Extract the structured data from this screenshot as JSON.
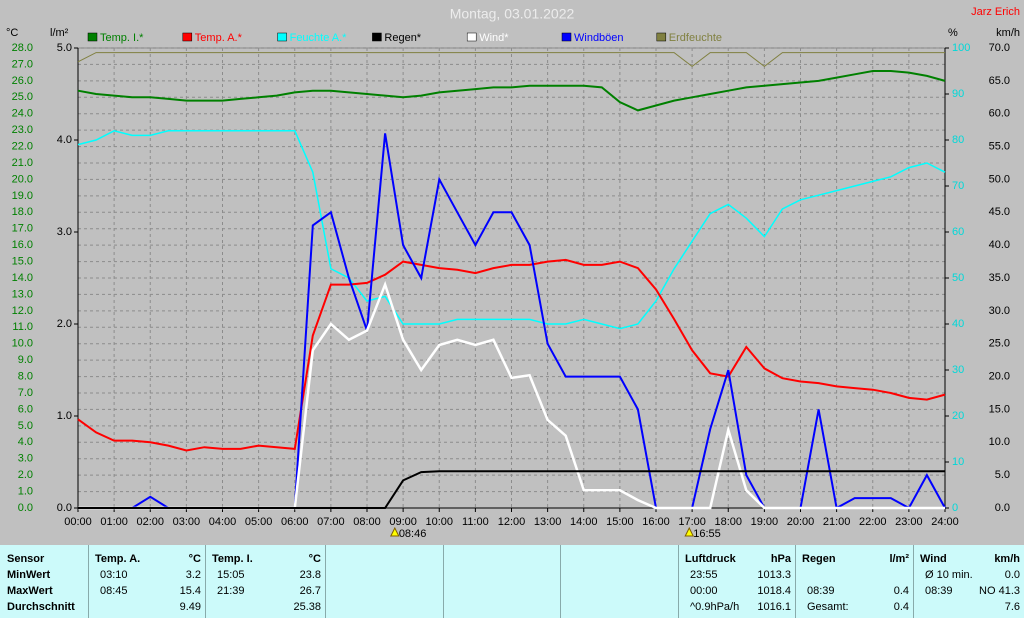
{
  "chart_data": {
    "type": "line",
    "title": "Montag, 03.01.2022",
    "author": "Jarz Erich",
    "y_label": "°C",
    "y2_label": "l/m²",
    "y3_label": "%",
    "y4_label": "km/h",
    "x": [
      0,
      0.5,
      1,
      1.5,
      2,
      2.5,
      3,
      3.5,
      4,
      4.5,
      5,
      5.5,
      6,
      6.5,
      7,
      7.5,
      8,
      8.5,
      9,
      9.5,
      10,
      10.5,
      11,
      11.5,
      12,
      12.5,
      13,
      13.5,
      14,
      14.5,
      15,
      15.5,
      16,
      16.5,
      17,
      17.5,
      18,
      18.5,
      19,
      19.5,
      20,
      20.5,
      21,
      21.5,
      22,
      22.5,
      23,
      23.5,
      24
    ],
    "xlim": [
      0,
      24
    ],
    "xticks": [
      {
        "value": 0,
        "label": "00:00"
      },
      {
        "value": 1,
        "label": "01:00"
      },
      {
        "value": 2,
        "label": "02:00"
      },
      {
        "value": 3,
        "label": "03:00"
      },
      {
        "value": 4,
        "label": "04:00"
      },
      {
        "value": 5,
        "label": "05:00"
      },
      {
        "value": 6,
        "label": "06:00"
      },
      {
        "value": 7,
        "label": "07:00"
      },
      {
        "value": 8,
        "label": "08:00"
      },
      {
        "value": 9,
        "label": "09:00"
      },
      {
        "value": 10,
        "label": "10:00"
      },
      {
        "value": 11,
        "label": "11:00"
      },
      {
        "value": 12,
        "label": "12:00"
      },
      {
        "value": 13,
        "label": "13:00"
      },
      {
        "value": 14,
        "label": "14:00"
      },
      {
        "value": 15,
        "label": "15:00"
      },
      {
        "value": 16,
        "label": "16:00"
      },
      {
        "value": 17,
        "label": "17:00"
      },
      {
        "value": 18,
        "label": "18:00"
      },
      {
        "value": 19,
        "label": "19:00"
      },
      {
        "value": 20,
        "label": "20:00"
      },
      {
        "value": 21,
        "label": "21:00"
      },
      {
        "value": 22,
        "label": "22:00"
      },
      {
        "value": 23,
        "label": "23:00"
      },
      {
        "value": 24,
        "label": "24:00"
      }
    ],
    "ylim": [
      0,
      28
    ],
    "yticks": [
      {
        "value": 0,
        "label": "0.0"
      },
      {
        "value": 1,
        "label": "1.0"
      },
      {
        "value": 2,
        "label": "2.0"
      },
      {
        "value": 3,
        "label": "3.0"
      },
      {
        "value": 4,
        "label": "4.0"
      },
      {
        "value": 5,
        "label": "5.0"
      },
      {
        "value": 6,
        "label": "6.0"
      },
      {
        "value": 7,
        "label": "7.0"
      },
      {
        "value": 8,
        "label": "8.0"
      },
      {
        "value": 9,
        "label": "9.0"
      },
      {
        "value": 10,
        "label": "10.0"
      },
      {
        "value": 11,
        "label": "11.0"
      },
      {
        "value": 12,
        "label": "12.0"
      },
      {
        "value": 13,
        "label": "13.0"
      },
      {
        "value": 14,
        "label": "14.0"
      },
      {
        "value": 15,
        "label": "15.0"
      },
      {
        "value": 16,
        "label": "16.0"
      },
      {
        "value": 17,
        "label": "17.0"
      },
      {
        "value": 18,
        "label": "18.0"
      },
      {
        "value": 19,
        "label": "19.0"
      },
      {
        "value": 20,
        "label": "20.0"
      },
      {
        "value": 21,
        "label": "21.0"
      },
      {
        "value": 22,
        "label": "22.0"
      },
      {
        "value": 23,
        "label": "23.0"
      },
      {
        "value": 24,
        "label": "24.0"
      },
      {
        "value": 25,
        "label": "25.0"
      },
      {
        "value": 26,
        "label": "26.0"
      },
      {
        "value": 27,
        "label": "27.0"
      },
      {
        "value": 28,
        "label": "28.0"
      }
    ],
    "y2lim": [
      0,
      5
    ],
    "y2ticks": [
      {
        "value": 0,
        "label": "0.0"
      },
      {
        "value": 1,
        "label": "1.0"
      },
      {
        "value": 2,
        "label": "2.0"
      },
      {
        "value": 3,
        "label": "3.0"
      },
      {
        "value": 4,
        "label": "4.0"
      },
      {
        "value": 5,
        "label": "5.0"
      }
    ],
    "y3lim": [
      0,
      100
    ],
    "y3ticks": [
      0,
      10,
      20,
      30,
      40,
      50,
      60,
      70,
      80,
      90,
      100
    ],
    "y4lim": [
      0,
      70
    ],
    "y4ticks": [
      {
        "value": 0,
        "label": "0.0"
      },
      {
        "value": 5,
        "label": "5.0"
      },
      {
        "value": 10,
        "label": "10.0"
      },
      {
        "value": 15,
        "label": "15.0"
      },
      {
        "value": 20,
        "label": "20.0"
      },
      {
        "value": 25,
        "label": "25.0"
      },
      {
        "value": 30,
        "label": "30.0"
      },
      {
        "value": 35,
        "label": "35.0"
      },
      {
        "value": 40,
        "label": "40.0"
      },
      {
        "value": 45,
        "label": "45.0"
      },
      {
        "value": 50,
        "label": "50.0"
      },
      {
        "value": 55,
        "label": "55.0"
      },
      {
        "value": 60,
        "label": "60.0"
      },
      {
        "value": 65,
        "label": "65.0"
      },
      {
        "value": 70,
        "label": "70.0"
      }
    ],
    "grid": true,
    "series": [
      {
        "name": "Temp. I.*",
        "color": "#008000",
        "axis": "y",
        "values": [
          25.4,
          25.2,
          25.1,
          25.0,
          25.0,
          24.9,
          24.8,
          24.8,
          24.8,
          24.9,
          25.0,
          25.1,
          25.3,
          25.4,
          25.4,
          25.3,
          25.2,
          25.1,
          25.0,
          25.1,
          25.3,
          25.4,
          25.5,
          25.6,
          25.6,
          25.7,
          25.7,
          25.7,
          25.7,
          25.6,
          24.7,
          24.2,
          24.5,
          24.8,
          25.0,
          25.2,
          25.4,
          25.6,
          25.7,
          25.8,
          25.9,
          26.0,
          26.2,
          26.4,
          26.6,
          26.6,
          26.5,
          26.3,
          26.0
        ]
      },
      {
        "name": "Temp. A.*",
        "color": "#ff0000",
        "axis": "y",
        "values": [
          5.4,
          4.6,
          4.1,
          4.1,
          4.0,
          3.8,
          3.5,
          3.7,
          3.6,
          3.6,
          3.8,
          3.7,
          3.6,
          10.5,
          13.6,
          13.6,
          13.7,
          14.2,
          15.0,
          14.8,
          14.6,
          14.5,
          14.3,
          14.6,
          14.8,
          14.8,
          15.0,
          15.1,
          14.8,
          14.8,
          15.0,
          14.6,
          13.3,
          11.5,
          9.6,
          8.2,
          8.0,
          9.8,
          8.5,
          7.9,
          7.7,
          7.6,
          7.4,
          7.3,
          7.2,
          7.0,
          6.7,
          6.6,
          6.9
        ]
      },
      {
        "name": "Feuchte A.*",
        "color": "#00ffff",
        "axis": "y3",
        "values": [
          79,
          80,
          82,
          81,
          81,
          82,
          82,
          82,
          82,
          82,
          82,
          82,
          82,
          73,
          52,
          50,
          45,
          46,
          40,
          40,
          40,
          41,
          41,
          41,
          41,
          41,
          40,
          40,
          41,
          40,
          39,
          40,
          45,
          52,
          58,
          64,
          66,
          63,
          59,
          65,
          67,
          68,
          69,
          70,
          71,
          72,
          74,
          75,
          73
        ]
      },
      {
        "name": "Regen*",
        "color": "#000000",
        "axis": "y2",
        "values": [
          0,
          0,
          0,
          0,
          0,
          0,
          0,
          0,
          0,
          0,
          0,
          0,
          0,
          0,
          0,
          0,
          0,
          0,
          0.3,
          0.39,
          0.4,
          0.4,
          0.4,
          0.4,
          0.4,
          0.4,
          0.4,
          0.4,
          0.4,
          0.4,
          0.4,
          0.4,
          0.4,
          0.4,
          0.4,
          0.4,
          0.4,
          0.4,
          0.4,
          0.4,
          0.4,
          0.4,
          0.4,
          0.4,
          0.4,
          0.4,
          0.4,
          0.4,
          0.4
        ]
      },
      {
        "name": "Wind*",
        "color": "#ffffff",
        "axis": "y4",
        "values": [
          0,
          0,
          0,
          0,
          0,
          0,
          0,
          0,
          0,
          0,
          0,
          0,
          0,
          24,
          28,
          25.6,
          27,
          34,
          25.6,
          21,
          24.8,
          25.6,
          24.8,
          25.6,
          19.8,
          20.2,
          13.4,
          11,
          2.7,
          2.7,
          2.7,
          1.2,
          0,
          0,
          0,
          0,
          11.9,
          2.7,
          0,
          0,
          0,
          0,
          0,
          0,
          0,
          0,
          0,
          0,
          0
        ]
      },
      {
        "name": "Windböen",
        "color": "#0000ff",
        "axis": "y4",
        "values": [
          0,
          0,
          0,
          0,
          1.7,
          0,
          0,
          0,
          0,
          0,
          0,
          0,
          0,
          43,
          45,
          35,
          27,
          57,
          40,
          35,
          50,
          45,
          40,
          45,
          45,
          40,
          25,
          20,
          20,
          20,
          20,
          15,
          0,
          0,
          0,
          12,
          21,
          5,
          0,
          0,
          0,
          15,
          0,
          1.5,
          1.5,
          1.5,
          0,
          5,
          0
        ]
      },
      {
        "name": "Erdfeuchte",
        "color": "#808040",
        "axis": "y3",
        "values": [
          97,
          99,
          99,
          99,
          99,
          99,
          99,
          99,
          99,
          99,
          99,
          99,
          99,
          99,
          99,
          99,
          99,
          99,
          99,
          99,
          99,
          99,
          99,
          99,
          99,
          99,
          99,
          99,
          99,
          99,
          99,
          99,
          99,
          99,
          96,
          99,
          99,
          99,
          96,
          99,
          99,
          99,
          99,
          99,
          99,
          99,
          99,
          99,
          99
        ]
      }
    ],
    "annotations": [
      {
        "text": "08:46",
        "x": 8.77
      },
      {
        "text": "16:55",
        "x": 16.92
      }
    ]
  },
  "table": {
    "groups": [
      {
        "title": "Sensor",
        "unit": "",
        "rows": [
          [
            "MinWert",
            ""
          ],
          [
            "MaxWert",
            ""
          ],
          [
            "Durchschnitt",
            ""
          ]
        ]
      },
      {
        "title": "Temp. A.",
        "unit": "°C",
        "rows": [
          [
            "03:10",
            "3.2"
          ],
          [
            "08:45",
            "15.4"
          ],
          [
            "",
            "9.49"
          ]
        ]
      },
      {
        "title": "Temp. I.",
        "unit": "°C",
        "rows": [
          [
            "15:05",
            "23.8"
          ],
          [
            "21:39",
            "26.7"
          ],
          [
            "",
            "25.38"
          ]
        ]
      },
      {
        "title": "",
        "unit": "",
        "rows": [
          [
            "",
            ""
          ],
          [
            "",
            ""
          ],
          [
            "",
            ""
          ]
        ]
      },
      {
        "title": "",
        "unit": "",
        "rows": [
          [
            "",
            ""
          ],
          [
            "",
            ""
          ],
          [
            "",
            ""
          ]
        ]
      },
      {
        "title": "",
        "unit": "",
        "rows": [
          [
            "",
            ""
          ],
          [
            "",
            ""
          ],
          [
            "",
            ""
          ]
        ]
      },
      {
        "title": "Luftdruck",
        "unit": "hPa",
        "rows": [
          [
            "23:55",
            "1013.3"
          ],
          [
            "00:00",
            "1018.4"
          ],
          [
            "^0.9hPa/h",
            "1016.1"
          ]
        ]
      },
      {
        "title": "Regen",
        "unit": "l/m²",
        "rows": [
          [
            "",
            ""
          ],
          [
            "08:39",
            "0.4"
          ],
          [
            "Gesamt:",
            "0.4"
          ]
        ]
      },
      {
        "title": "Wind",
        "unit": "km/h",
        "rows": [
          [
            "Ø 10 min.",
            "0.0"
          ],
          [
            "08:39",
            "NO 41.3"
          ],
          [
            "",
            "7.6"
          ]
        ]
      }
    ]
  }
}
